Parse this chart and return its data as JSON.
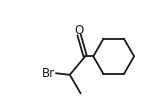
{
  "background_color": "#ffffff",
  "line_color": "#1a1a1a",
  "line_width": 1.3,
  "text_color": "#1a1a1a",
  "font_size_O": 8.5,
  "font_size_Br": 8.5,
  "O_label": "O",
  "Br_label": "Br",
  "figsize": [
    1.67,
    1.1
  ],
  "dpi": 100,
  "xlim": [
    0.0,
    1.67
  ],
  "ylim": [
    0.0,
    1.1
  ]
}
